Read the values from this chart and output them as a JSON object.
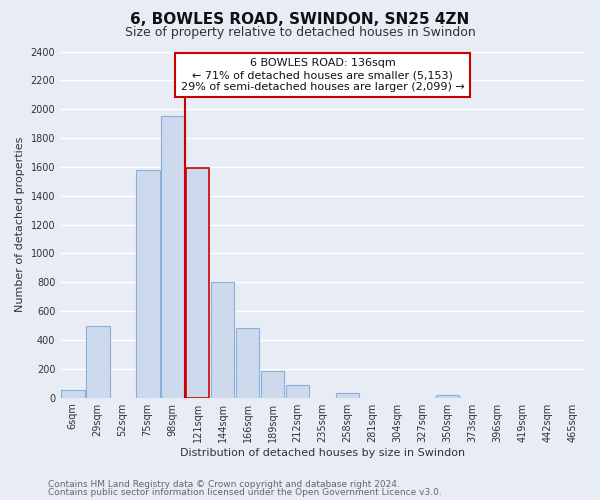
{
  "title": "6, BOWLES ROAD, SWINDON, SN25 4ZN",
  "subtitle": "Size of property relative to detached houses in Swindon",
  "xlabel": "Distribution of detached houses by size in Swindon",
  "ylabel": "Number of detached properties",
  "bar_labels": [
    "6sqm",
    "29sqm",
    "52sqm",
    "75sqm",
    "98sqm",
    "121sqm",
    "144sqm",
    "166sqm",
    "189sqm",
    "212sqm",
    "235sqm",
    "258sqm",
    "281sqm",
    "304sqm",
    "327sqm",
    "350sqm",
    "373sqm",
    "396sqm",
    "419sqm",
    "442sqm",
    "465sqm"
  ],
  "bar_values": [
    50,
    500,
    0,
    1580,
    1950,
    1590,
    800,
    480,
    185,
    90,
    0,
    30,
    0,
    0,
    0,
    20,
    0,
    0,
    0,
    0,
    0
  ],
  "bar_color": "#cdd9ed",
  "bar_edge_color": "#8ab0d8",
  "highlight_bar_index": 5,
  "highlight_edge_color": "#cc0000",
  "annotation_line0": "6 BOWLES ROAD: 136sqm",
  "annotation_line1": "← 71% of detached houses are smaller (5,153)",
  "annotation_line2": "29% of semi-detached houses are larger (2,099) →",
  "annotation_box_color": "#ffffff",
  "annotation_box_edge_color": "#cc0000",
  "vline_x": 4.5,
  "ylim": [
    0,
    2400
  ],
  "yticks": [
    0,
    200,
    400,
    600,
    800,
    1000,
    1200,
    1400,
    1600,
    1800,
    2000,
    2200,
    2400
  ],
  "footer_line1": "Contains HM Land Registry data © Crown copyright and database right 2024.",
  "footer_line2": "Contains public sector information licensed under the Open Government Licence v3.0.",
  "bg_color": "#e8ecf5",
  "plot_bg_color": "#e8ecf5",
  "grid_color": "#ffffff",
  "title_fontsize": 11,
  "subtitle_fontsize": 9,
  "axis_label_fontsize": 8,
  "tick_fontsize": 7,
  "footer_fontsize": 6.5,
  "annotation_fontsize": 8
}
